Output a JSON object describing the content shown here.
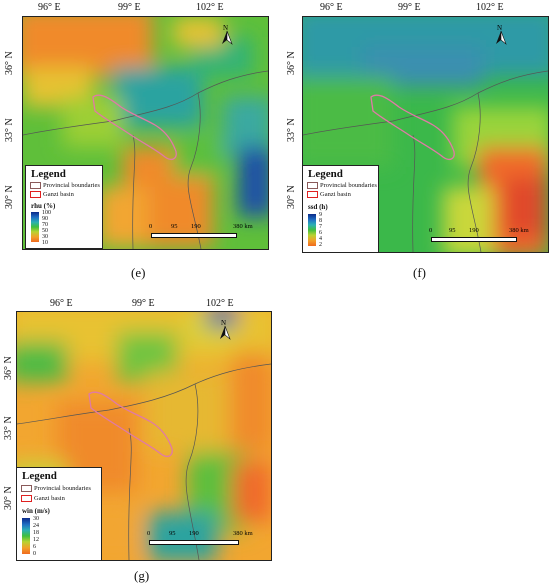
{
  "panels": [
    {
      "id": "e",
      "caption": "(e)",
      "x_ticks": [
        "96° E",
        "99° E",
        "102° E"
      ],
      "y_ticks": [
        "36° N",
        "33° N",
        "30° N"
      ],
      "north_label": "N",
      "legend": {
        "title": "Legend",
        "items": [
          "Provincial boundaries",
          "Ganzi basin"
        ],
        "variable": "rhu (%)",
        "ticks": [
          "100",
          "90",
          "70",
          "50",
          "30",
          "10"
        ]
      },
      "scale": [
        "0",
        "95",
        "190",
        "380 km"
      ]
    },
    {
      "id": "f",
      "caption": "(f)",
      "x_ticks": [
        "96° E",
        "99° E",
        "102° E"
      ],
      "y_ticks": [
        "36° N",
        "33° N",
        "30° N"
      ],
      "north_label": "N",
      "legend": {
        "title": "Legend",
        "items": [
          "Provincial boundaries",
          "Ganzi basin"
        ],
        "variable": "ssd (h)",
        "ticks": [
          "9",
          "8",
          "7",
          "6",
          "4",
          "2"
        ]
      },
      "scale": [
        "0",
        "95",
        "190",
        "380 km"
      ]
    },
    {
      "id": "g",
      "caption": "(g)",
      "x_ticks": [
        "96° E",
        "99° E",
        "102° E"
      ],
      "y_ticks": [
        "36° N",
        "33° N",
        "30° N"
      ],
      "north_label": "N",
      "legend": {
        "title": "Legend",
        "items": [
          "Provincial boundaries",
          "Ganzi basin"
        ],
        "variable": "win (m/s)",
        "ticks": [
          "30",
          "24",
          "18",
          "12",
          "6",
          "0"
        ]
      },
      "scale": [
        "0",
        "95",
        "190",
        "380 km"
      ]
    }
  ],
  "colors": {
    "boundary": "#555555",
    "basin": "#e07aa6",
    "legend_basin": "#e02020",
    "legend_boundary": "#8a5a5a"
  }
}
